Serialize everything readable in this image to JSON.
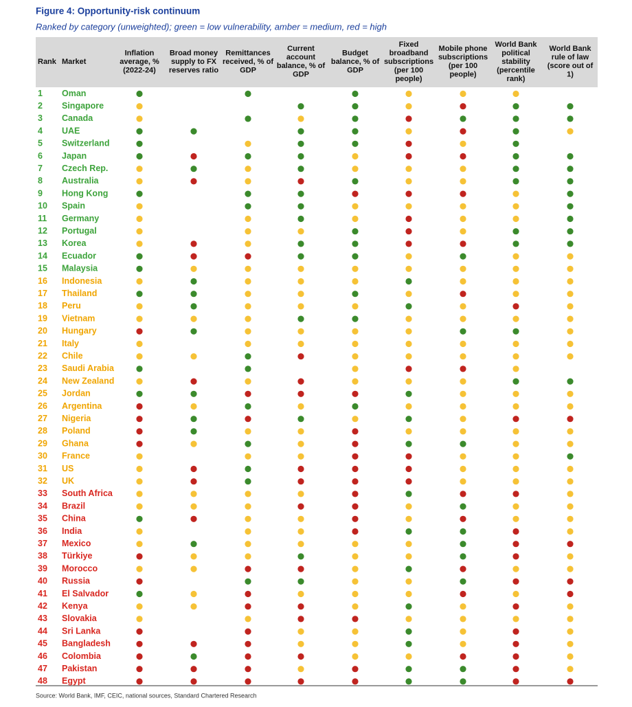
{
  "title": "Figure 4: Opportunity-risk continuum",
  "subtitle": "Ranked by category (unweighted); green = low vulnerability, amber = medium, red = high",
  "source": "Source: World Bank, IMF, CEIC, national sources, Standard Chartered Research",
  "colors": {
    "green": "#3b8a2c",
    "amber": "#f6c236",
    "red": "#c0241f"
  },
  "text_colors": {
    "green": "#3da33b",
    "amber": "#f0a500",
    "red": "#d8261f"
  },
  "columns": [
    [
      "Rank"
    ],
    [
      "Market"
    ],
    [
      "Inflation",
      "average, %",
      "(2022-24)"
    ],
    [
      "Broad money",
      "supply to FX",
      "reserves ratio"
    ],
    [
      "Remittances",
      "received, % of",
      "GDP"
    ],
    [
      "Current",
      "account",
      "balance, % of",
      "GDP"
    ],
    [
      "Budget",
      "balance, % of",
      "GDP"
    ],
    [
      "Fixed",
      "broadband",
      "subscriptions",
      "(per 100",
      "people)"
    ],
    [
      "Mobile phone",
      "subscriptions",
      "(per 100",
      "people)"
    ],
    [
      "World Bank",
      "political",
      "stability",
      "(percentile",
      "rank)"
    ],
    [
      "World Bank",
      "rule of law",
      "(score out of",
      "1)"
    ]
  ],
  "table": {
    "rows": [
      {
        "rank": "1",
        "market": "Oman",
        "tier": "green",
        "cells": [
          "green",
          null,
          "green",
          null,
          "green",
          "amber",
          "amber",
          "amber",
          null
        ]
      },
      {
        "rank": "2",
        "market": "Singapore",
        "tier": "green",
        "cells": [
          "amber",
          null,
          null,
          "green",
          "green",
          "amber",
          "red",
          "green",
          "green"
        ]
      },
      {
        "rank": "3",
        "market": "Canada",
        "tier": "green",
        "cells": [
          "amber",
          null,
          "green",
          "amber",
          "green",
          "red",
          "green",
          "green",
          "green"
        ]
      },
      {
        "rank": "4",
        "market": "UAE",
        "tier": "green",
        "cells": [
          "green",
          "green",
          null,
          "green",
          "green",
          "amber",
          "red",
          "green",
          "amber"
        ]
      },
      {
        "rank": "5",
        "market": "Switzerland",
        "tier": "green",
        "cells": [
          "green",
          null,
          "amber",
          "green",
          "green",
          "red",
          "amber",
          "green",
          null
        ]
      },
      {
        "rank": "6",
        "market": "Japan",
        "tier": "green",
        "cells": [
          "green",
          "red",
          "green",
          "green",
          "amber",
          "red",
          "red",
          "green",
          "green"
        ]
      },
      {
        "rank": "7",
        "market": "Czech Rep.",
        "tier": "green",
        "cells": [
          "amber",
          "green",
          "amber",
          "green",
          "amber",
          "amber",
          "amber",
          "green",
          "green"
        ]
      },
      {
        "rank": "8",
        "market": "Australia",
        "tier": "green",
        "cells": [
          "amber",
          "red",
          "amber",
          "red",
          "green",
          "amber",
          "amber",
          "green",
          "green"
        ]
      },
      {
        "rank": "9",
        "market": "Hong Kong",
        "tier": "green",
        "cells": [
          "green",
          null,
          "green",
          "green",
          "red",
          "red",
          "red",
          "amber",
          "green"
        ]
      },
      {
        "rank": "10",
        "market": "Spain",
        "tier": "green",
        "cells": [
          "amber",
          null,
          "green",
          "green",
          "amber",
          "amber",
          "amber",
          "amber",
          "green"
        ]
      },
      {
        "rank": "11",
        "market": "Germany",
        "tier": "green",
        "cells": [
          "amber",
          null,
          "amber",
          "green",
          "amber",
          "red",
          "amber",
          "amber",
          "green"
        ]
      },
      {
        "rank": "12",
        "market": "Portugal",
        "tier": "green",
        "cells": [
          "amber",
          null,
          "amber",
          "amber",
          "green",
          "red",
          "amber",
          "green",
          "green"
        ]
      },
      {
        "rank": "13",
        "market": "Korea",
        "tier": "green",
        "cells": [
          "amber",
          "red",
          "amber",
          "green",
          "green",
          "red",
          "red",
          "green",
          "green"
        ]
      },
      {
        "rank": "14",
        "market": "Ecuador",
        "tier": "green",
        "cells": [
          "green",
          "red",
          "red",
          "green",
          "green",
          "amber",
          "green",
          "amber",
          "amber"
        ]
      },
      {
        "rank": "15",
        "market": "Malaysia",
        "tier": "green",
        "cells": [
          "green",
          "amber",
          "amber",
          "amber",
          "amber",
          "amber",
          "amber",
          "amber",
          "amber"
        ]
      },
      {
        "rank": "16",
        "market": "Indonesia",
        "tier": "amber",
        "cells": [
          "amber",
          "green",
          "amber",
          "amber",
          "amber",
          "green",
          "amber",
          "amber",
          "amber"
        ]
      },
      {
        "rank": "17",
        "market": "Thailand",
        "tier": "amber",
        "cells": [
          "green",
          "green",
          "amber",
          "amber",
          "green",
          "amber",
          "red",
          "amber",
          "amber"
        ]
      },
      {
        "rank": "18",
        "market": "Peru",
        "tier": "amber",
        "cells": [
          "amber",
          "green",
          "amber",
          "amber",
          "amber",
          "green",
          "amber",
          "red",
          "amber"
        ]
      },
      {
        "rank": "19",
        "market": "Vietnam",
        "tier": "amber",
        "cells": [
          "amber",
          "amber",
          "amber",
          "green",
          "green",
          "amber",
          "amber",
          "amber",
          "amber"
        ]
      },
      {
        "rank": "20",
        "market": "Hungary",
        "tier": "amber",
        "cells": [
          "red",
          "green",
          "amber",
          "amber",
          "amber",
          "amber",
          "green",
          "green",
          "amber"
        ]
      },
      {
        "rank": "21",
        "market": "Italy",
        "tier": "amber",
        "cells": [
          "amber",
          null,
          "amber",
          "amber",
          "amber",
          "amber",
          "amber",
          "amber",
          "amber"
        ]
      },
      {
        "rank": "22",
        "market": "Chile",
        "tier": "amber",
        "cells": [
          "amber",
          "amber",
          "green",
          "red",
          "amber",
          "amber",
          "amber",
          "amber",
          "amber"
        ]
      },
      {
        "rank": "23",
        "market": "Saudi Arabia",
        "tier": "amber",
        "cells": [
          "green",
          null,
          "green",
          null,
          "amber",
          "red",
          "red",
          "amber",
          null
        ]
      },
      {
        "rank": "24",
        "market": "New Zealand",
        "tier": "amber",
        "cells": [
          "amber",
          "red",
          "amber",
          "red",
          "amber",
          "amber",
          "amber",
          "green",
          "green"
        ]
      },
      {
        "rank": "25",
        "market": "Jordan",
        "tier": "amber",
        "cells": [
          "green",
          "green",
          "red",
          "red",
          "red",
          "green",
          "amber",
          "amber",
          "amber"
        ]
      },
      {
        "rank": "26",
        "market": "Argentina",
        "tier": "amber",
        "cells": [
          "red",
          "amber",
          "green",
          "amber",
          "green",
          "amber",
          "amber",
          "amber",
          "amber"
        ]
      },
      {
        "rank": "27",
        "market": "Nigeria",
        "tier": "amber",
        "cells": [
          "red",
          "green",
          "red",
          "green",
          "amber",
          "green",
          "amber",
          "red",
          "red"
        ]
      },
      {
        "rank": "28",
        "market": "Poland",
        "tier": "amber",
        "cells": [
          "red",
          "green",
          "amber",
          "amber",
          "red",
          "amber",
          "amber",
          "amber",
          "amber"
        ]
      },
      {
        "rank": "29",
        "market": "Ghana",
        "tier": "amber",
        "cells": [
          "red",
          "amber",
          "green",
          "amber",
          "red",
          "green",
          "green",
          "amber",
          "amber"
        ]
      },
      {
        "rank": "30",
        "market": "France",
        "tier": "amber",
        "cells": [
          "amber",
          null,
          "amber",
          "amber",
          "red",
          "red",
          "amber",
          "amber",
          "green"
        ]
      },
      {
        "rank": "31",
        "market": "US",
        "tier": "amber",
        "cells": [
          "amber",
          "red",
          "green",
          "red",
          "red",
          "red",
          "amber",
          "amber",
          "amber"
        ]
      },
      {
        "rank": "32",
        "market": "UK",
        "tier": "amber",
        "cells": [
          "amber",
          "red",
          "green",
          "red",
          "red",
          "red",
          "amber",
          "amber",
          "amber"
        ]
      },
      {
        "rank": "33",
        "market": "South Africa",
        "tier": "red",
        "cells": [
          "amber",
          "amber",
          "amber",
          "amber",
          "red",
          "green",
          "red",
          "red",
          "amber"
        ]
      },
      {
        "rank": "34",
        "market": "Brazil",
        "tier": "red",
        "cells": [
          "amber",
          "amber",
          "amber",
          "red",
          "red",
          "amber",
          "green",
          "amber",
          "amber"
        ]
      },
      {
        "rank": "35",
        "market": "China",
        "tier": "red",
        "cells": [
          "green",
          "red",
          "amber",
          "amber",
          "red",
          "amber",
          "red",
          "amber",
          "amber"
        ]
      },
      {
        "rank": "36",
        "market": "India",
        "tier": "red",
        "cells": [
          "amber",
          null,
          "amber",
          "amber",
          "red",
          "green",
          "green",
          "red",
          "amber"
        ]
      },
      {
        "rank": "37",
        "market": "Mexico",
        "tier": "red",
        "cells": [
          "amber",
          "green",
          "amber",
          "amber",
          "amber",
          "amber",
          "green",
          "red",
          "red"
        ]
      },
      {
        "rank": "38",
        "market": "Türkiye",
        "tier": "red",
        "cells": [
          "red",
          "amber",
          "amber",
          "green",
          "amber",
          "amber",
          "green",
          "red",
          "amber"
        ]
      },
      {
        "rank": "39",
        "market": "Morocco",
        "tier": "red",
        "cells": [
          "amber",
          "amber",
          "red",
          "red",
          "amber",
          "green",
          "red",
          "amber",
          "amber"
        ]
      },
      {
        "rank": "40",
        "market": "Russia",
        "tier": "red",
        "cells": [
          "red",
          null,
          "green",
          "green",
          "amber",
          "amber",
          "green",
          "red",
          "red"
        ]
      },
      {
        "rank": "41",
        "market": "El Salvador",
        "tier": "red",
        "cells": [
          "green",
          "amber",
          "red",
          "amber",
          "amber",
          "amber",
          "red",
          "amber",
          "red"
        ]
      },
      {
        "rank": "42",
        "market": "Kenya",
        "tier": "red",
        "cells": [
          "amber",
          "amber",
          "red",
          "red",
          "amber",
          "green",
          "amber",
          "red",
          "amber"
        ]
      },
      {
        "rank": "43",
        "market": "Slovakia",
        "tier": "red",
        "cells": [
          "amber",
          null,
          "amber",
          "red",
          "red",
          "amber",
          "amber",
          "amber",
          "amber"
        ]
      },
      {
        "rank": "44",
        "market": "Sri Lanka",
        "tier": "red",
        "cells": [
          "red",
          null,
          "red",
          "amber",
          "amber",
          "green",
          "amber",
          "red",
          "amber"
        ]
      },
      {
        "rank": "45",
        "market": "Bangladesh",
        "tier": "red",
        "cells": [
          "red",
          "red",
          "red",
          "amber",
          "amber",
          "green",
          "amber",
          "red",
          "amber"
        ]
      },
      {
        "rank": "46",
        "market": "Colombia",
        "tier": "red",
        "cells": [
          "red",
          "green",
          "red",
          "red",
          "amber",
          "amber",
          "red",
          "red",
          "amber"
        ]
      },
      {
        "rank": "47",
        "market": "Pakistan",
        "tier": "red",
        "cells": [
          "red",
          "red",
          "red",
          "amber",
          "red",
          "green",
          "green",
          "red",
          "amber"
        ]
      },
      {
        "rank": "48",
        "market": "Egypt",
        "tier": "red",
        "cells": [
          "red",
          "red",
          "red",
          "red",
          "red",
          "green",
          "green",
          "red",
          "red"
        ]
      }
    ]
  }
}
